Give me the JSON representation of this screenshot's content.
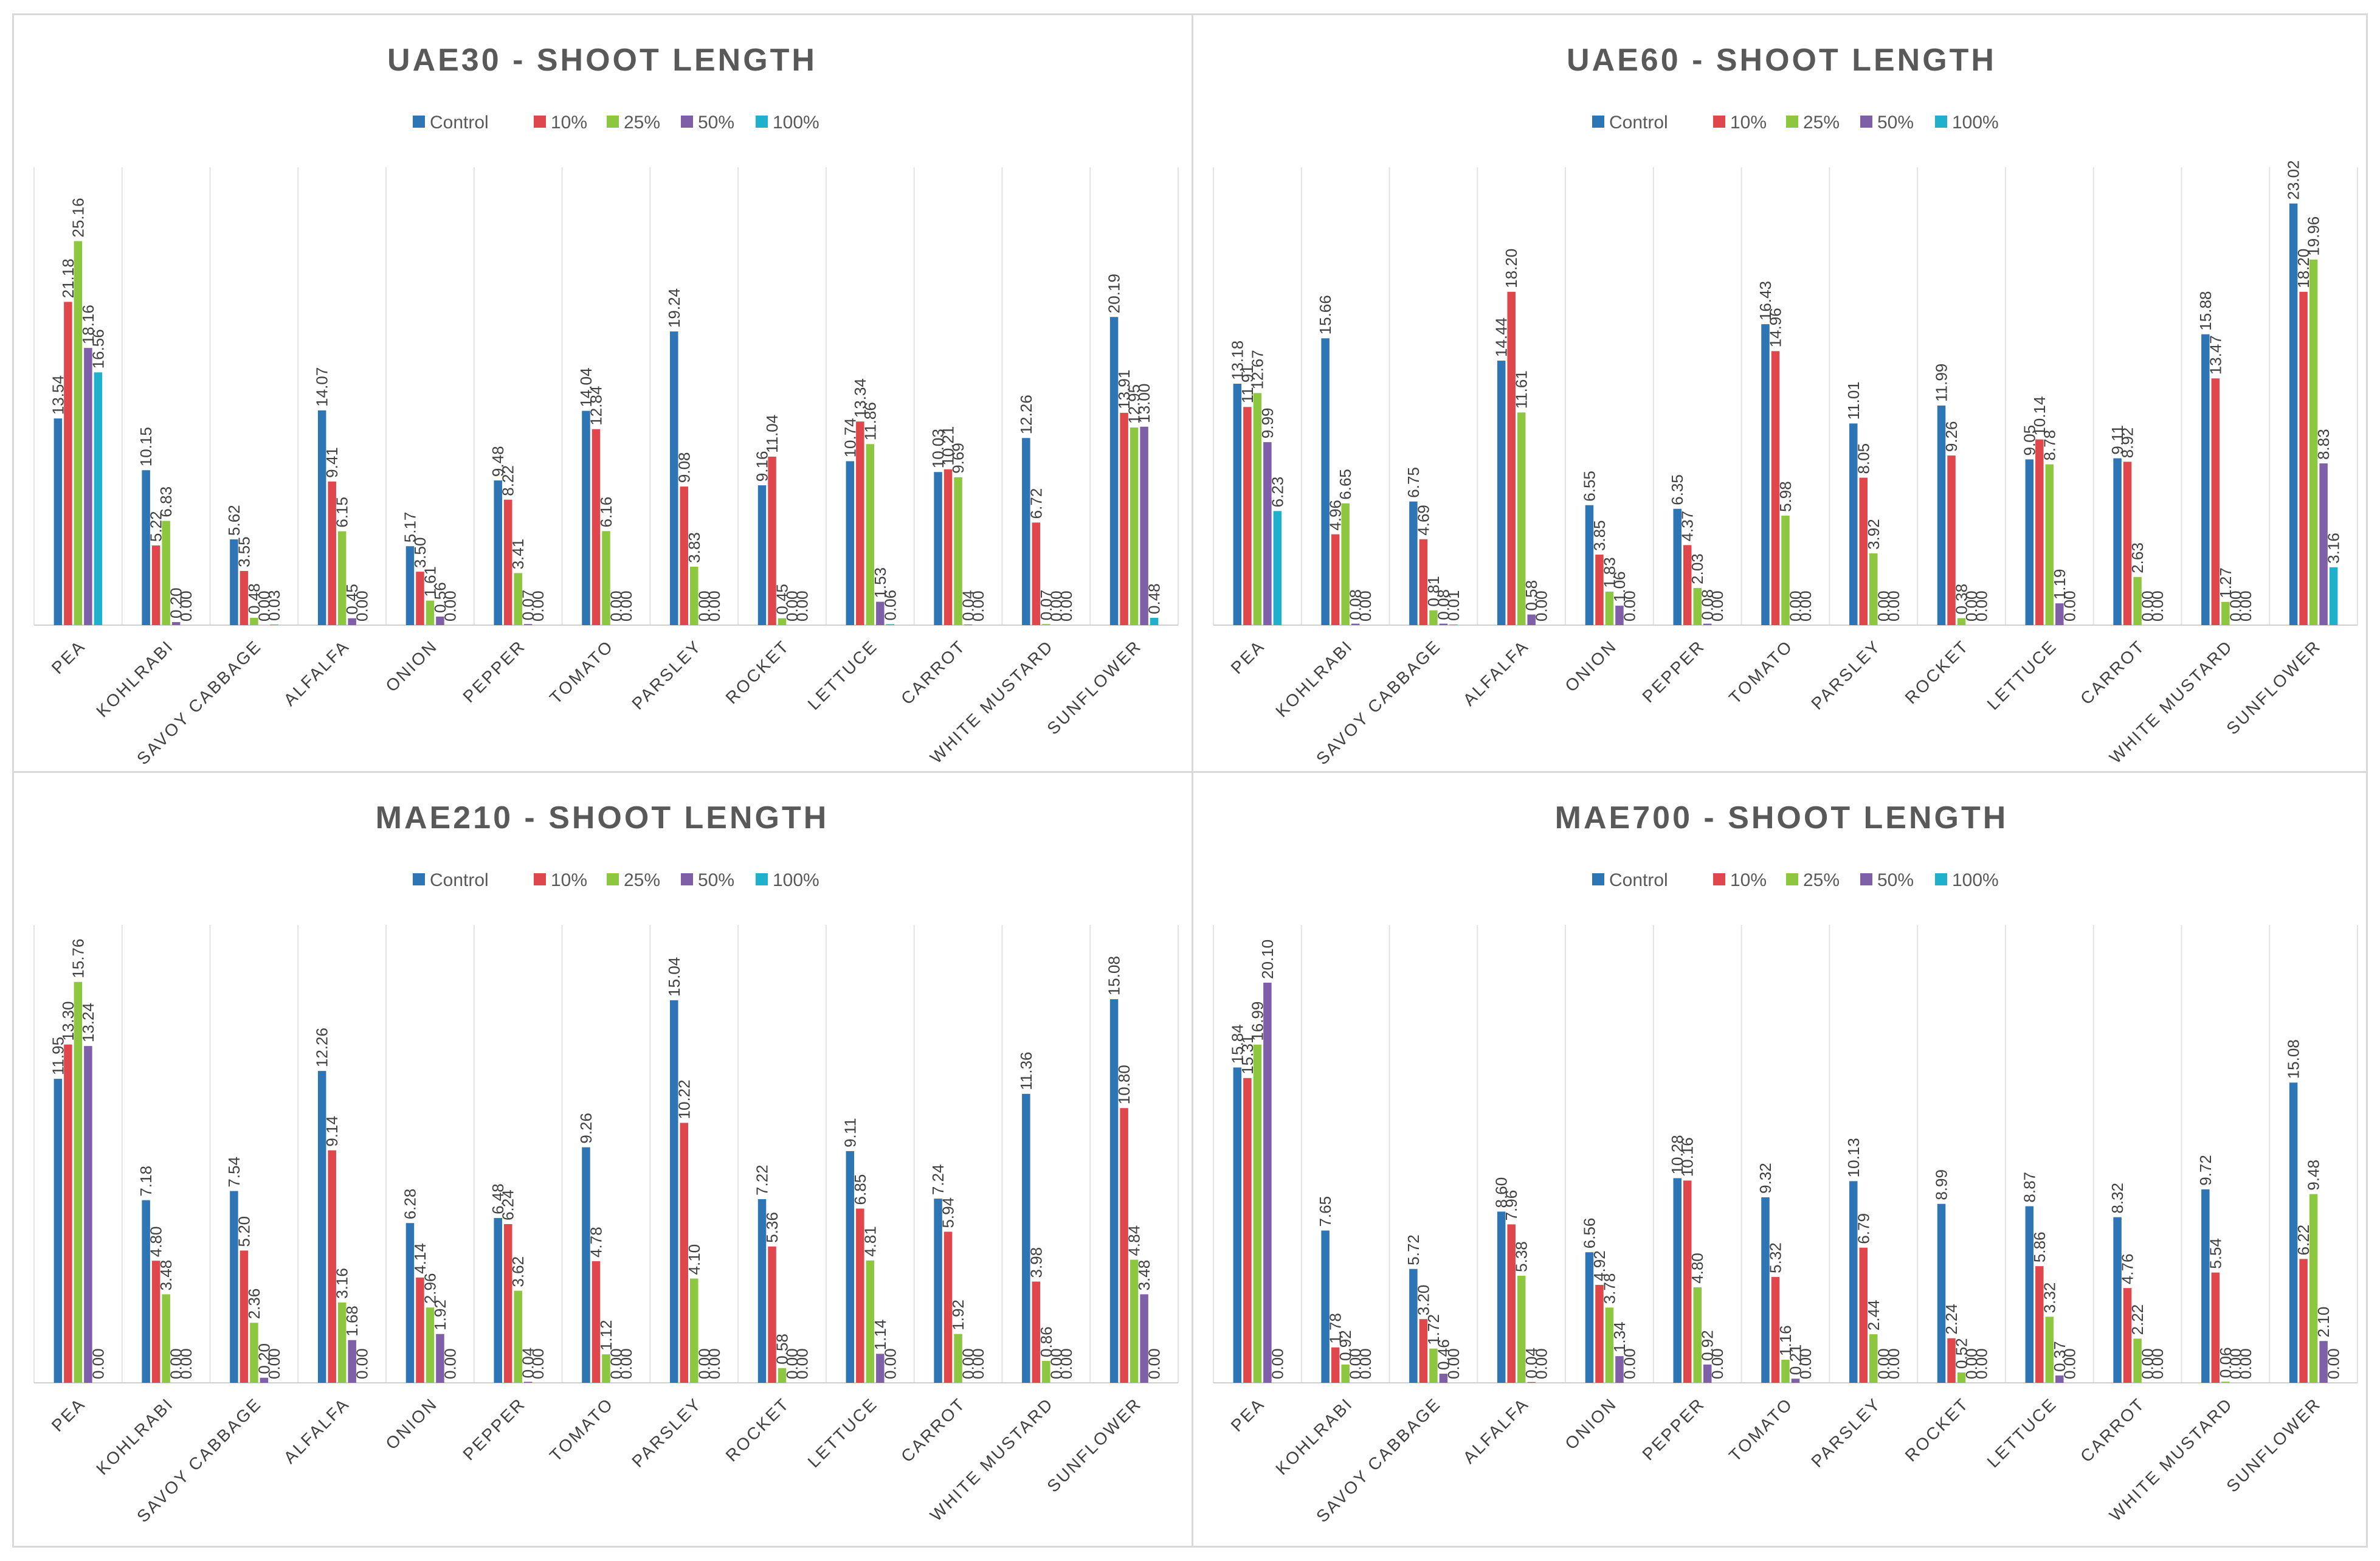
{
  "chart_data": [
    {
      "type": "bar",
      "title": "UAE30 - SHOOT LENGTH",
      "legend": [
        "Control",
        "10%",
        "25%",
        "50%",
        "100%"
      ],
      "legend_position": "top",
      "grid": false,
      "ylim": [
        0,
        30
      ],
      "categories": [
        "PEA",
        "KOHLRABI",
        "SAVOY CABBAGE",
        "ALFALFA",
        "ONION",
        "PEPPER",
        "TOMATO",
        "PARSLEY",
        "ROCKET",
        "LETTUCE",
        "CARROT",
        "WHITE MUSTARD",
        "SUNFLOWER"
      ],
      "series": [
        {
          "name": "Control",
          "values": [
            "13.54",
            "10.15",
            "5.62",
            "14.07",
            "5.17",
            "9.48",
            "14.04",
            "19.24",
            "9.16",
            "10.74",
            "10.03",
            "12.26",
            "20.19"
          ]
        },
        {
          "name": "10%",
          "values": [
            "21.18",
            "5.22",
            "3.55",
            "9.41",
            "3.50",
            "8.22",
            "12.84",
            "9.08",
            "11.04",
            "13.34",
            "10.21",
            "6.72",
            "13.91"
          ]
        },
        {
          "name": "25%",
          "values": [
            "25.16",
            "6.83",
            "0.48",
            "6.15",
            "1.61",
            "3.41",
            "6.16",
            "3.83",
            "0.45",
            "11.86",
            "9.69",
            "0.07",
            "12.95"
          ]
        },
        {
          "name": "50%",
          "values": [
            "18.16",
            "0.20",
            "0.00",
            "0.45",
            "0.56",
            "0.07",
            "0.00",
            "0.00",
            "0.00",
            "1.53",
            "0.04",
            "0.00",
            "13.00"
          ]
        },
        {
          "name": "100%",
          "values": [
            "16.56",
            "0.00",
            "0.03",
            "0.00",
            "0.00",
            "0.00",
            "0.00",
            "0.00",
            "0.00",
            "0.06",
            "0.00",
            "0.00",
            "0.48"
          ]
        }
      ]
    },
    {
      "type": "bar",
      "title": "UAE60 - SHOOT LENGTH",
      "legend": [
        "Control",
        "10%",
        "25%",
        "50%",
        "100%"
      ],
      "legend_position": "top",
      "grid": false,
      "ylim": [
        0,
        25
      ],
      "categories": [
        "PEA",
        "KOHLRABI",
        "SAVOY CABBAGE",
        "ALFALFA",
        "ONION",
        "PEPPER",
        "TOMATO",
        "PARSLEY",
        "ROCKET",
        "LETTUCE",
        "CARROT",
        "WHITE MUSTARD",
        "SUNFLOWER"
      ],
      "series": [
        {
          "name": "Control",
          "values": [
            "13.18",
            "15.66",
            "6.75",
            "14.44",
            "6.55",
            "6.35",
            "16.43",
            "11.01",
            "11.99",
            "9.05",
            "9.11",
            "15.88",
            "23.02"
          ]
        },
        {
          "name": "10%",
          "values": [
            "11.91",
            "4.96",
            "4.69",
            "18.20",
            "3.85",
            "4.37",
            "14.96",
            "8.05",
            "9.26",
            "10.14",
            "8.92",
            "13.47",
            "18.20"
          ]
        },
        {
          "name": "25%",
          "values": [
            "12.67",
            "6.65",
            "0.81",
            "11.61",
            "1.83",
            "2.03",
            "5.98",
            "3.92",
            "0.38",
            "8.78",
            "2.63",
            "1.27",
            "19.96"
          ]
        },
        {
          "name": "50%",
          "values": [
            "9.99",
            "0.08",
            "0.08",
            "0.58",
            "1.06",
            "0.08",
            "0.00",
            "0.00",
            "0.00",
            "1.19",
            "0.00",
            "0.00",
            "8.83"
          ]
        },
        {
          "name": "100%",
          "values": [
            "6.23",
            "0.00",
            "0.01",
            "0.00",
            "0.00",
            "0.00",
            "0.00",
            "0.00",
            "0.00",
            "0.00",
            "0.00",
            "0.00",
            "3.16"
          ]
        }
      ]
    },
    {
      "type": "bar",
      "title": "MAE210 - SHOOT LENGTH",
      "legend": [
        "Control",
        "10%",
        "25%",
        "50%",
        "100%"
      ],
      "legend_position": "top",
      "grid": false,
      "ylim": [
        0,
        18
      ],
      "categories": [
        "PEA",
        "KOHLRABI",
        "SAVOY CABBAGE",
        "ALFALFA",
        "ONION",
        "PEPPER",
        "TOMATO",
        "PARSLEY",
        "ROCKET",
        "LETTUCE",
        "CARROT",
        "WHITE MUSTARD",
        "SUNFLOWER"
      ],
      "series": [
        {
          "name": "Control",
          "values": [
            "11.95",
            "7.18",
            "7.54",
            "12.26",
            "6.28",
            "6.48",
            "9.26",
            "15.04",
            "7.22",
            "9.11",
            "7.24",
            "11.36",
            "15.08"
          ]
        },
        {
          "name": "10%",
          "values": [
            "13.30",
            "4.80",
            "5.20",
            "9.14",
            "4.14",
            "6.24",
            "4.78",
            "10.22",
            "5.36",
            "6.85",
            "5.94",
            "3.98",
            "10.80"
          ]
        },
        {
          "name": "25%",
          "values": [
            "15.76",
            "3.48",
            "2.36",
            "3.16",
            "2.96",
            "3.62",
            "1.12",
            "4.10",
            "0.58",
            "4.81",
            "1.92",
            "0.86",
            "4.84"
          ]
        },
        {
          "name": "50%",
          "values": [
            "13.24",
            "0.00",
            "0.20",
            "1.68",
            "1.92",
            "0.04",
            "0.00",
            "0.00",
            "0.00",
            "1.14",
            "0.00",
            "0.00",
            "3.48"
          ]
        },
        {
          "name": "100%",
          "values": [
            "0.00",
            "0.00",
            "0.00",
            "0.00",
            "0.00",
            "0.00",
            "0.00",
            "0.00",
            "0.00",
            "0.00",
            "0.00",
            "0.00",
            "0.00"
          ]
        }
      ]
    },
    {
      "type": "bar",
      "title": "MAE700 - SHOOT LENGTH",
      "legend": [
        "Control",
        "10%",
        "25%",
        "50%",
        "100%"
      ],
      "legend_position": "top",
      "grid": false,
      "ylim": [
        0,
        23
      ],
      "categories": [
        "PEA",
        "KOHLRABI",
        "SAVOY CABBAGE",
        "ALFALFA",
        "ONION",
        "PEPPER",
        "TOMATO",
        "PARSLEY",
        "ROCKET",
        "LETTUCE",
        "CARROT",
        "WHITE MUSTARD",
        "SUNFLOWER"
      ],
      "series": [
        {
          "name": "Control",
          "values": [
            "15.84",
            "7.65",
            "5.72",
            "8.60",
            "6.56",
            "10.28",
            "9.32",
            "10.13",
            "8.99",
            "8.87",
            "8.32",
            "9.72",
            "15.08"
          ]
        },
        {
          "name": "10%",
          "values": [
            "15.31",
            "1.78",
            "3.20",
            "7.96",
            "4.92",
            "10.16",
            "5.32",
            "6.79",
            "2.24",
            "5.86",
            "4.76",
            "5.54",
            "6.22"
          ]
        },
        {
          "name": "25%",
          "values": [
            "16.99",
            "0.92",
            "1.72",
            "5.38",
            "3.78",
            "4.80",
            "1.16",
            "2.44",
            "0.52",
            "3.32",
            "2.22",
            "0.06",
            "9.48"
          ]
        },
        {
          "name": "50%",
          "values": [
            "20.10",
            "0.00",
            "0.46",
            "0.04",
            "1.34",
            "0.92",
            "0.21",
            "0.00",
            "0.00",
            "0.37",
            "0.00",
            "0.00",
            "2.10"
          ]
        },
        {
          "name": "100%",
          "values": [
            "0.00",
            "0.00",
            "0.00",
            "0.00",
            "0.00",
            "0.00",
            "0.00",
            "0.00",
            "0.00",
            "0.00",
            "0.00",
            "0.00",
            "0.00"
          ]
        }
      ]
    }
  ],
  "series_colors": [
    "#2e75b6",
    "#e0474c",
    "#8dc63f",
    "#7f5fa8",
    "#1fb1cc"
  ]
}
